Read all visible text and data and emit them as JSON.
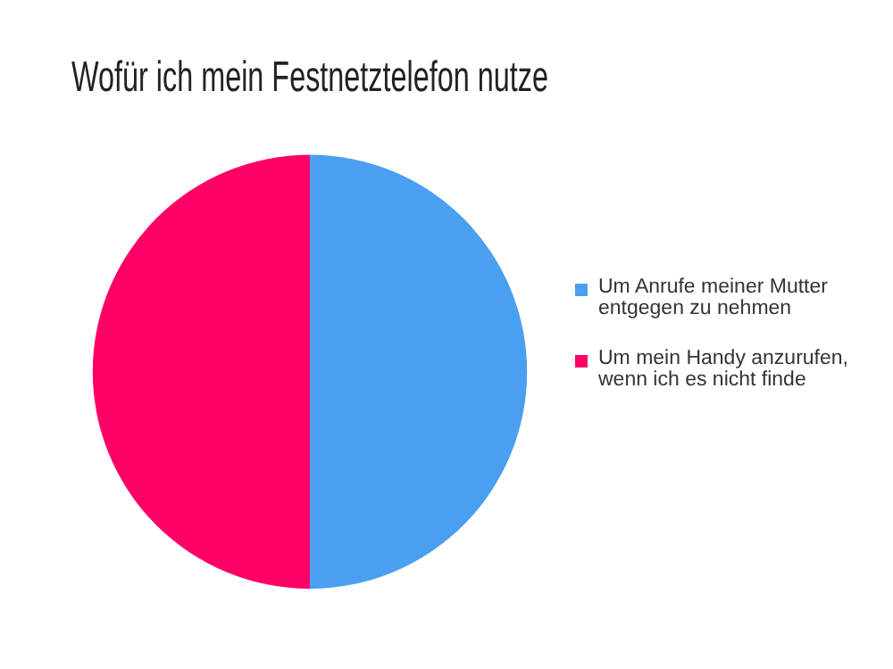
{
  "chart_data": {
    "type": "pie",
    "title": "Wofür ich mein Festnetztelefon nutze",
    "categories": [
      "Um Anrufe meiner Mutter entgegen zu nehmen",
      "Um mein Handy anzurufen, wenn ich es nicht finde"
    ],
    "values": [
      50,
      50
    ],
    "colors": [
      "#4a9ff0",
      "#ff0066"
    ],
    "legend": "right"
  }
}
